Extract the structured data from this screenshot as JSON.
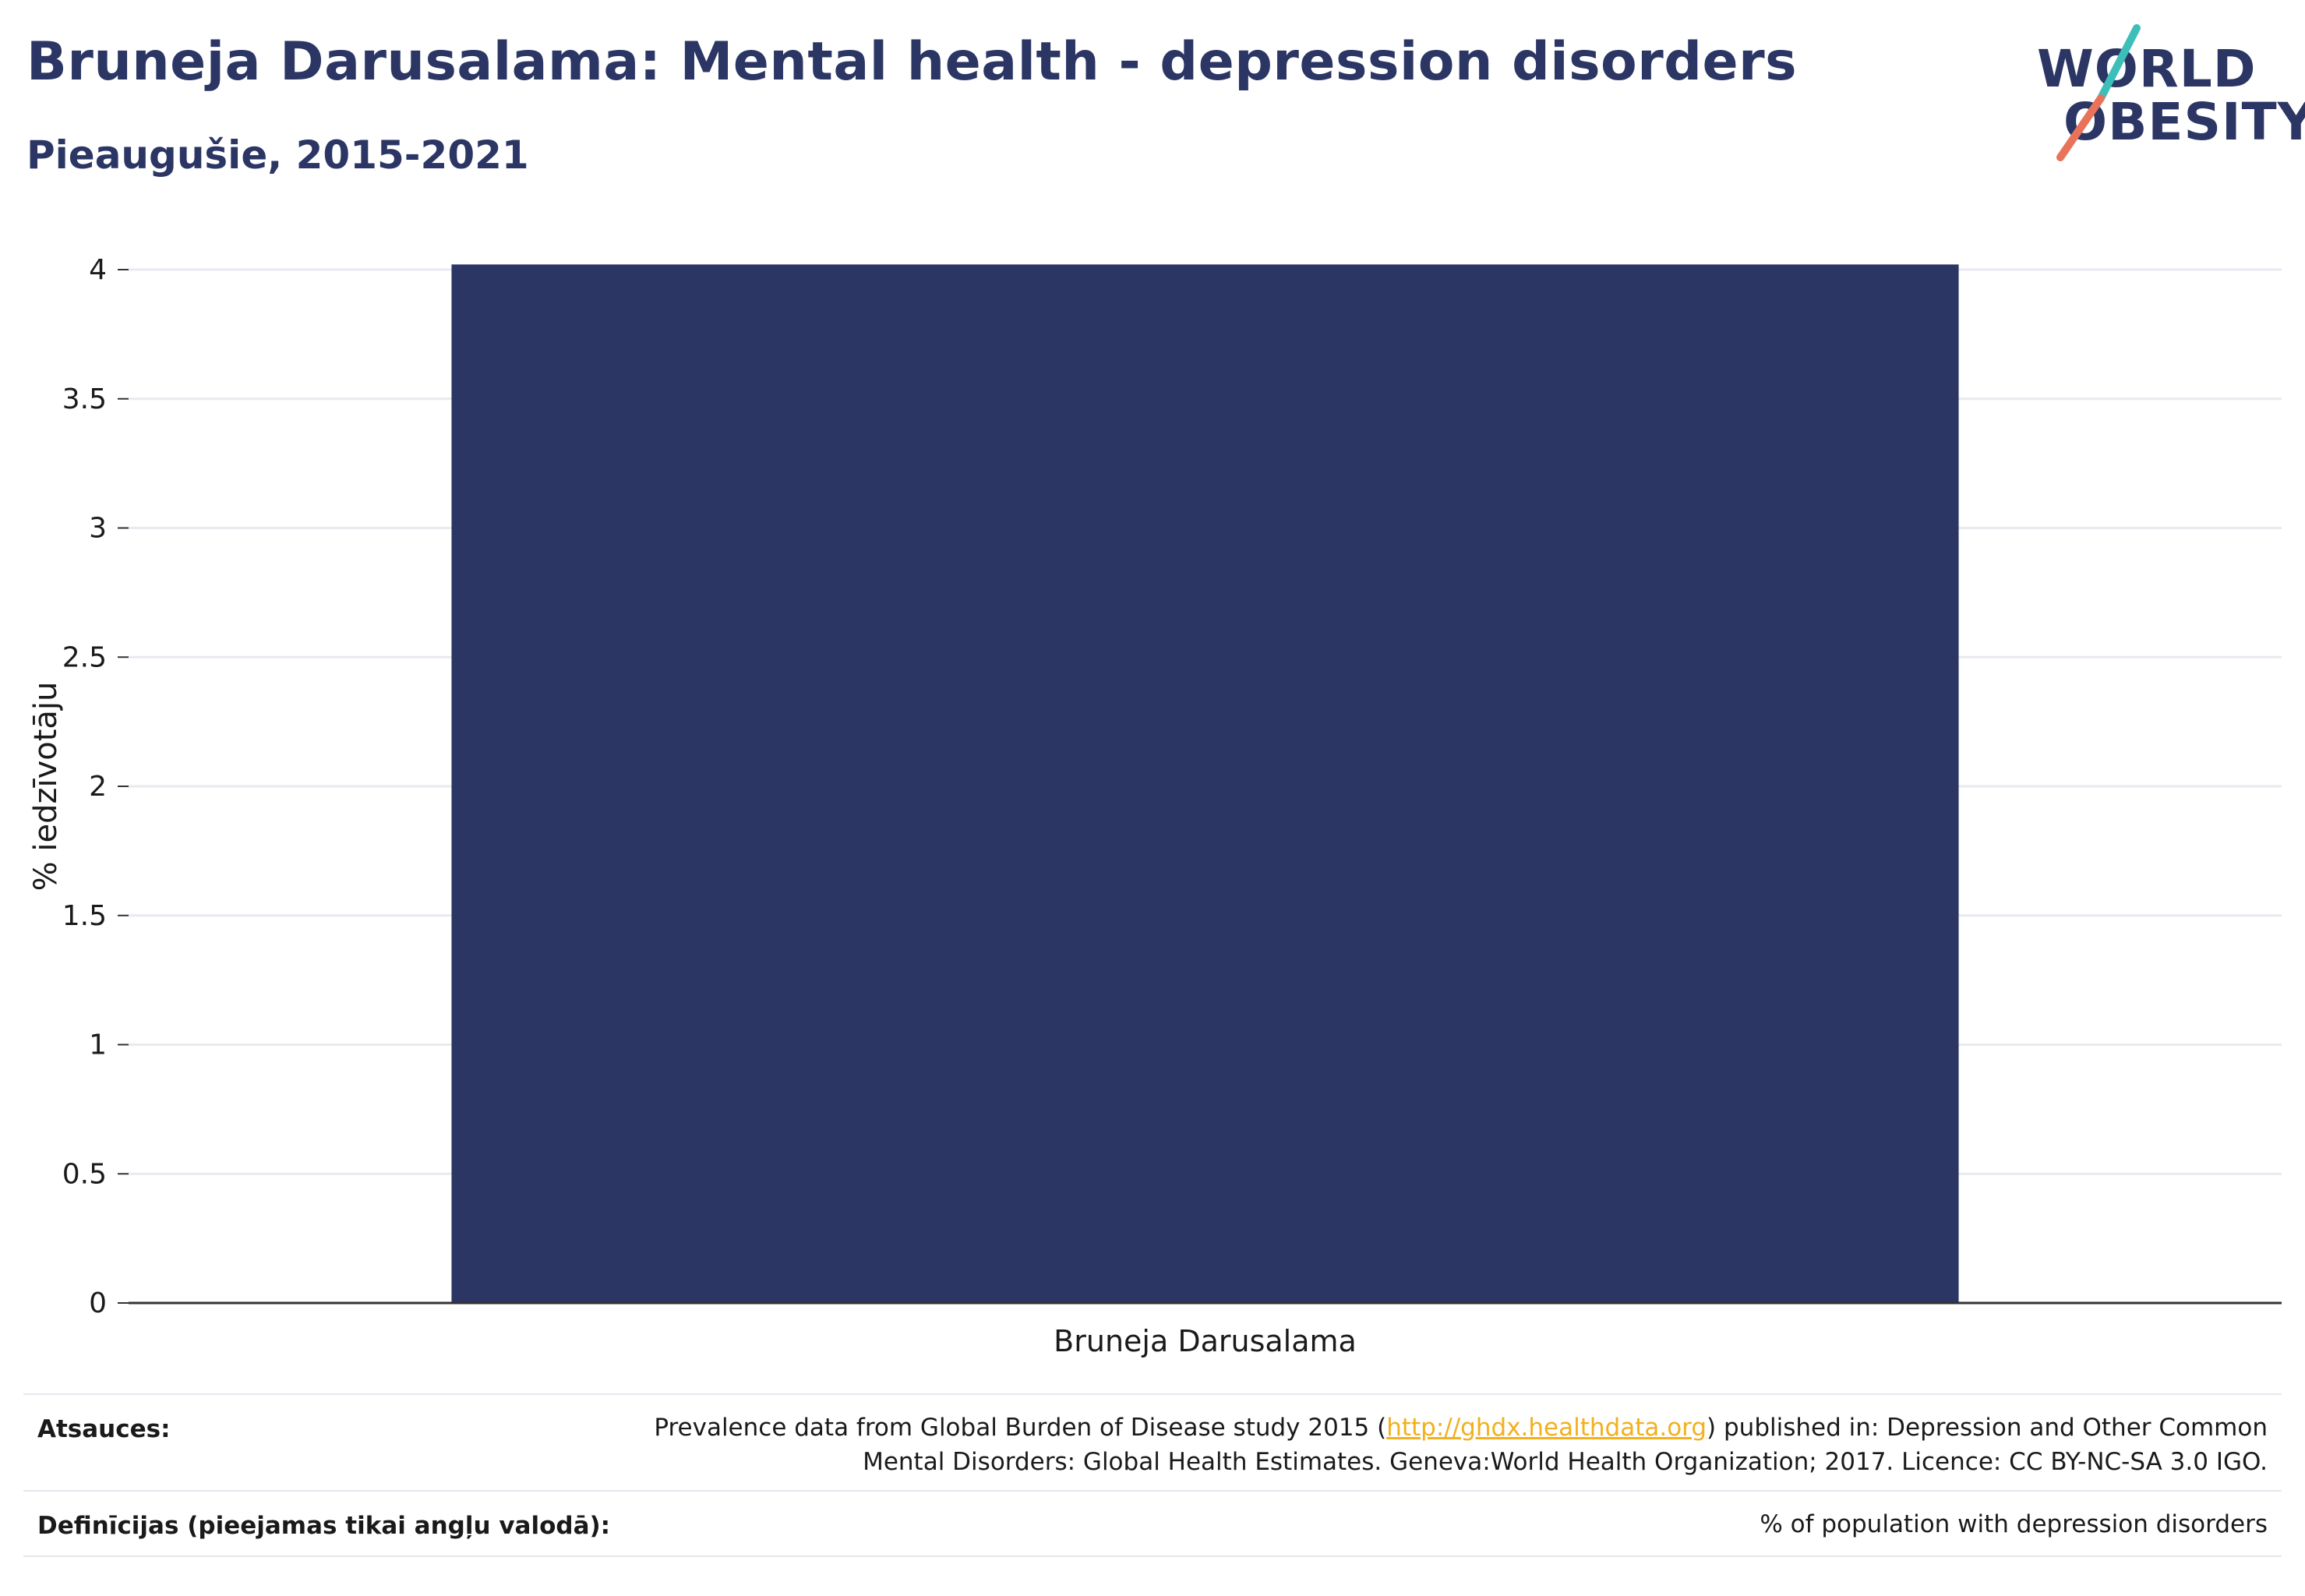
{
  "header": {
    "title": "Bruneja Darusalama: Mental health - depression disorders",
    "subtitle": "Pieaugušie, 2015-2021"
  },
  "logo": {
    "line1": "WORLD",
    "line2": "OBESITY",
    "accent_colors": [
      "#3bbfb8",
      "#e8735a"
    ]
  },
  "colors": {
    "bar": "#2b3664",
    "text": "#2b3664",
    "grid": "#e8eaf0",
    "axis": "#333333",
    "link": "#f2b01e"
  },
  "chart_data": {
    "type": "bar",
    "categories": [
      "Bruneja Darusalama"
    ],
    "series": [
      {
        "values": [
          4.02
        ]
      }
    ],
    "ylabel": "% iedzīvotāju",
    "xlabel": "",
    "ylim": [
      0,
      4
    ],
    "yticks": [
      "0",
      "0.5",
      "1",
      "1.5",
      "2",
      "2.5",
      "3",
      "3.5",
      "4"
    ],
    "grid": true
  },
  "footer": {
    "sources_label": "Atsauces:",
    "sources_text_before": "Prevalence data from Global Burden of Disease study 2015 (",
    "sources_link": "http://ghdx.healthdata.org",
    "sources_text_after": ") published in: Depression and Other Common",
    "sources_line2": "Mental Disorders: Global Health Estimates. Geneva:World Health Organization; 2017. Licence: CC BY-NC-SA 3.0 IGO.",
    "definitions_label": "Definīcijas (pieejamas tikai angļu valodā):",
    "definitions_text": "% of population with depression disorders"
  }
}
